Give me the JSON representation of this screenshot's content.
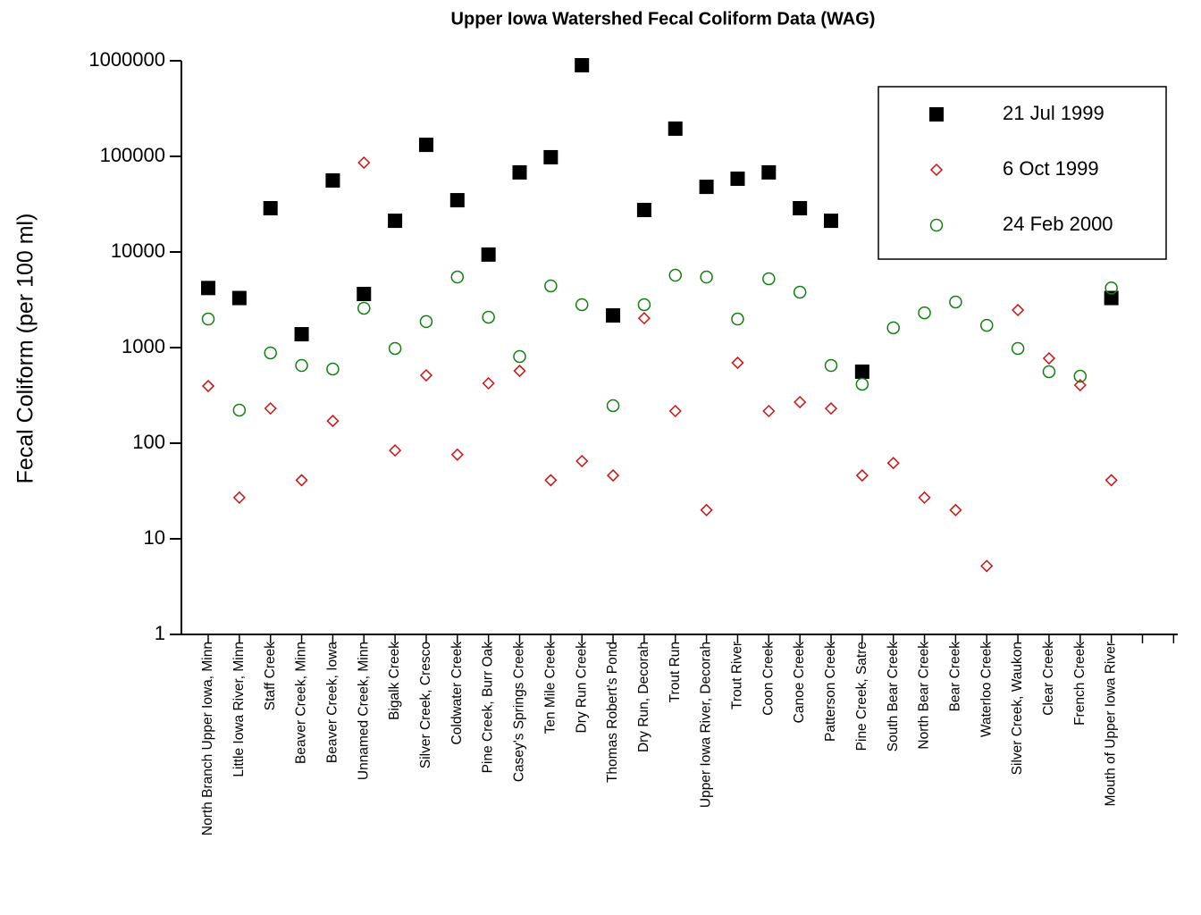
{
  "chart_data": {
    "type": "scatter",
    "title": "Upper Iowa Watershed Fecal Coliform Data (WAG)",
    "y_label": "Fecal Coliform (per 100 ml)",
    "categories": [
      "North Branch Upper Iowa, Minn",
      "Little Iowa River, Minn",
      "Staff Creek",
      "Beaver Creek, Minn",
      "Beaver Creek, Iowa",
      "Unnamed Creek, Minn",
      "Bigalk Creek",
      "Silver Creek, Cresco",
      "Coldwater Creek",
      "Pine Creek, Burr Oak",
      "Casey's Springs Creek",
      "Ten Mile Creek",
      "Dry Run Creek",
      "Thomas Robert's Pond",
      "Dry Run, Decorah",
      "Trout Run",
      "Upper Iowa River, Decorah",
      "Trout River",
      "Coon Creek",
      "Canoe Creek",
      "Patterson Creek",
      "Pine Creek, Satre",
      "South Bear Creek",
      "North Bear Creek",
      "Bear Creek",
      "Waterloo Creek",
      "Silver Creek, Waukon",
      "Clear Creek",
      "French Creek",
      "Mouth of Upper Iowa River",
      null,
      null
    ],
    "series": [
      {
        "name": "21 Jul 1999",
        "color": "#000000",
        "marker": "square",
        "values": [
          4200,
          3300,
          28700,
          1380,
          56000,
          3640,
          21200,
          132000,
          34800,
          9400,
          68000,
          98000,
          898000,
          2170,
          27500,
          195000,
          48000,
          58400,
          68000,
          28700,
          21200,
          560,
          null,
          null,
          null,
          null,
          null,
          null,
          null,
          3300,
          null,
          null
        ]
      },
      {
        "name": "6 Oct 1999",
        "color": "#d01010",
        "marker": "diamond",
        "values": [
          396,
          27,
          231,
          41,
          171,
          86000,
          84,
          513,
          76,
          423,
          571,
          41,
          65,
          46,
          2030,
          217,
          20,
          693,
          217,
          269,
          231,
          46,
          62,
          27,
          20,
          5.2,
          2470,
          772,
          405,
          41,
          null,
          null
        ]
      },
      {
        "name": "24 Feb 2000",
        "color": "#108010",
        "marker": "circle",
        "values": [
          1990,
          222,
          879,
          650,
          597,
          2580,
          979,
          1870,
          5470,
          2080,
          807,
          4420,
          2810,
          247,
          2810,
          5710,
          5470,
          1990,
          5250,
          3800,
          650,
          414,
          1610,
          2310,
          3000,
          1710,
          979,
          560,
          502,
          4200,
          null,
          null
        ]
      }
    ],
    "ylim": [
      1,
      1000000
    ],
    "yticks": [
      1,
      10,
      100,
      1000,
      10000,
      100000,
      1000000
    ],
    "log_y": true,
    "grid": false,
    "legend": "upper right"
  }
}
